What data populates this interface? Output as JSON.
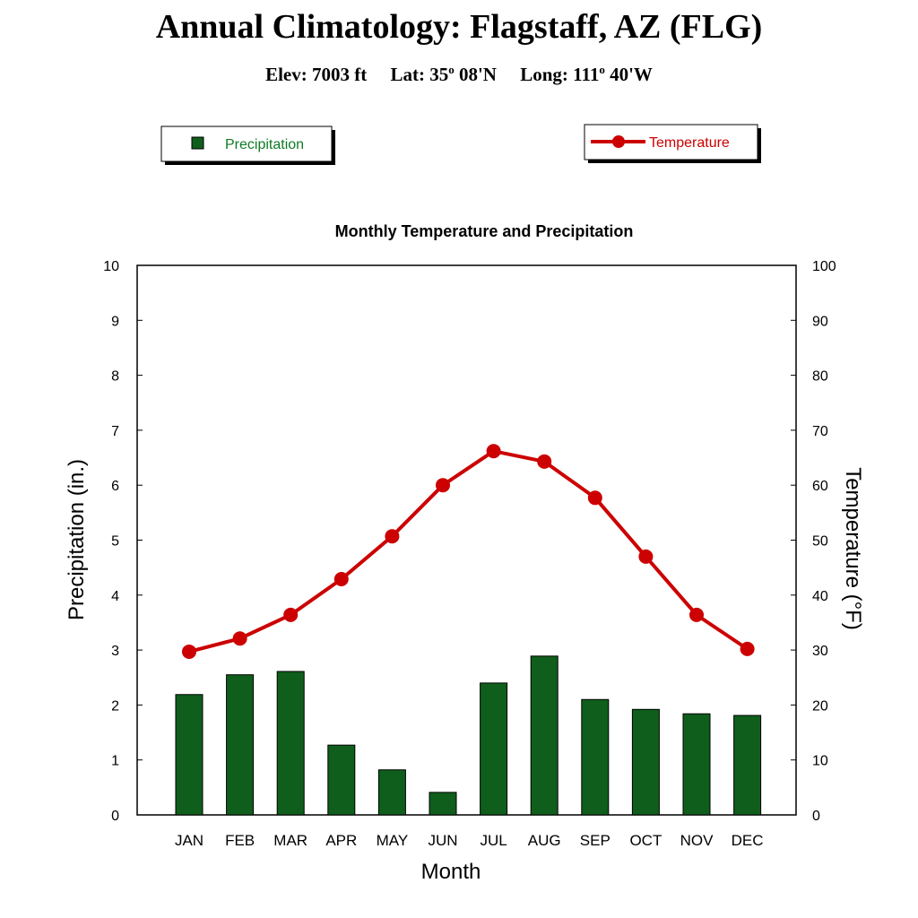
{
  "header": {
    "title": "Annual Climatology: Flagstaff, AZ (FLG)",
    "elev": "Elev: 7003 ft",
    "lat_prefix": "Lat: 35",
    "lat_suffix": " 08'N",
    "long_prefix": "Long: 111",
    "long_suffix": " 40'W",
    "degree_mark": "o"
  },
  "chart_data": {
    "type": "bar+line",
    "title": "Monthly Temperature and Precipitation",
    "xlabel": "Month",
    "ylabel_left": "Precipitation (in.)",
    "ylabel_right": "Temperature (°F)",
    "categories": [
      "JAN",
      "FEB",
      "MAR",
      "APR",
      "MAY",
      "JUN",
      "JUL",
      "AUG",
      "SEP",
      "OCT",
      "NOV",
      "DEC"
    ],
    "ylim_left": [
      0,
      10
    ],
    "ylim_right": [
      0,
      100
    ],
    "yticks_left": [
      "0",
      "1",
      "2",
      "3",
      "4",
      "5",
      "6",
      "7",
      "8",
      "9",
      "10"
    ],
    "yticks_right": [
      "0",
      "10",
      "20",
      "30",
      "40",
      "50",
      "60",
      "70",
      "80",
      "90",
      "100"
    ],
    "grid": false,
    "series": [
      {
        "name": "Precipitation",
        "type": "bar",
        "axis": "left",
        "color": "#0f5e1c",
        "values": [
          2.19,
          2.55,
          2.61,
          1.27,
          0.82,
          0.41,
          2.4,
          2.89,
          2.1,
          1.92,
          1.84,
          1.81
        ]
      },
      {
        "name": "Temperature",
        "type": "line",
        "axis": "right",
        "color": "#cc0000",
        "values": [
          29.7,
          32.1,
          36.4,
          42.9,
          50.7,
          60.0,
          66.2,
          64.3,
          57.7,
          47.0,
          36.4,
          30.2
        ]
      }
    ],
    "legend": {
      "precip_label": "Precipitation",
      "temp_label": "Temperature",
      "placement": "top"
    }
  }
}
